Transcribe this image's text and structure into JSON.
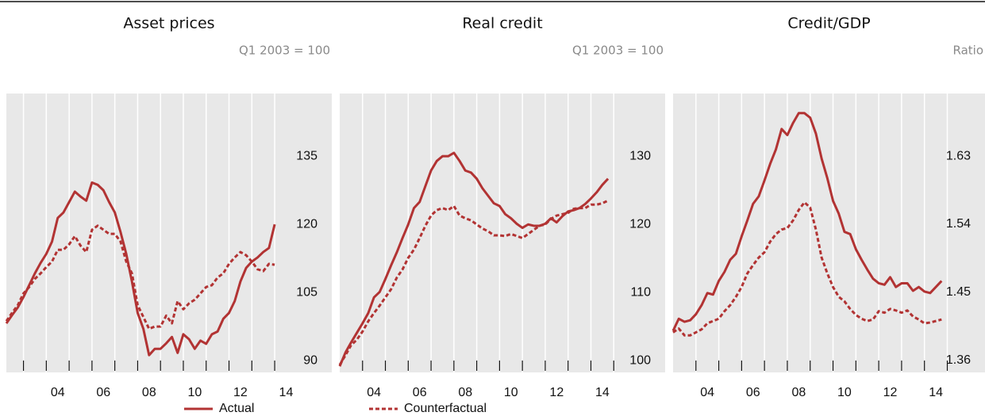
{
  "chart_data": [
    {
      "type": "line",
      "title": "Asset prices",
      "subtitle": "Q1 2003 = 100",
      "x": [
        2002.25,
        2002.5,
        2002.75,
        2003,
        2003.25,
        2003.5,
        2003.75,
        2004,
        2004.25,
        2004.5,
        2004.75,
        2005,
        2005.25,
        2005.5,
        2005.75,
        2006,
        2006.25,
        2006.5,
        2006.75,
        2007,
        2007.25,
        2007.5,
        2007.75,
        2008,
        2008.25,
        2008.5,
        2008.75,
        2009,
        2009.25,
        2009.5,
        2009.75,
        2010,
        2010.25,
        2010.5,
        2010.75,
        2011,
        2011.25,
        2011.5,
        2011.75,
        2012,
        2012.25,
        2012.5,
        2012.75,
        2013,
        2013.25,
        2013.5,
        2013.75,
        2014
      ],
      "xlim": [
        2002.25,
        2016.5
      ],
      "xticks": [
        {
          "value": 2004.5,
          "label": "04"
        },
        {
          "value": 2006.5,
          "label": "06"
        },
        {
          "value": 2008.5,
          "label": "08"
        },
        {
          "value": 2010.5,
          "label": "10"
        },
        {
          "value": 2012.5,
          "label": "12"
        },
        {
          "value": 2014.5,
          "label": "14"
        }
      ],
      "x_tick_marks": [
        2003,
        2004,
        2005,
        2006,
        2007,
        2008,
        2009,
        2010,
        2011,
        2012,
        2013,
        2014
      ],
      "ylim": [
        87.4,
        148.8
      ],
      "yticks": [
        90,
        105,
        120,
        135
      ],
      "series": [
        {
          "name": "Actual",
          "color": "#b23333",
          "dash": false,
          "values": [
            98.2,
            100,
            101.7,
            104,
            106.6,
            109.2,
            111.5,
            113.5,
            116.2,
            121.4,
            122.6,
            124.9,
            127.2,
            126.1,
            125.2,
            129.2,
            128.7,
            127.5,
            124.9,
            122.6,
            118.3,
            113.5,
            107.4,
            100.5,
            97,
            91.2,
            92.6,
            92.6,
            93.8,
            95.2,
            91.7,
            95.8,
            94.7,
            92.6,
            94.4,
            93.7,
            95.8,
            96.4,
            99.2,
            100.5,
            103.1,
            107.4,
            110.4,
            111.8,
            112.7,
            113.9,
            114.8,
            120
          ]
        },
        {
          "name": "Counterfactual",
          "color": "#b23333",
          "dash": true,
          "values": [
            98.7,
            100.5,
            102.2,
            104.8,
            106.2,
            108,
            109.2,
            110.6,
            111.8,
            114.4,
            114.4,
            115.6,
            117.4,
            115.3,
            113.9,
            118.8,
            119.7,
            118.8,
            117.9,
            117.9,
            116.2,
            111.8,
            109.2,
            102.2,
            99.6,
            97,
            97.5,
            97.5,
            99.9,
            98.2,
            103.1,
            101.3,
            102.6,
            103.4,
            104.8,
            106.2,
            106.6,
            108.3,
            109.2,
            111.3,
            112.7,
            113.9,
            113.2,
            111.8,
            110.1,
            109.7,
            111.3,
            111.1
          ]
        }
      ]
    },
    {
      "type": "line",
      "title": "Real credit",
      "subtitle": "Q1 2003 = 100",
      "x": [
        2003,
        2003.25,
        2003.5,
        2003.75,
        2004,
        2004.25,
        2004.5,
        2004.75,
        2005,
        2005.25,
        2005.5,
        2005.75,
        2006,
        2006.25,
        2006.5,
        2006.75,
        2007,
        2007.25,
        2007.5,
        2007.75,
        2008,
        2008.25,
        2008.5,
        2008.75,
        2009,
        2009.25,
        2009.5,
        2009.75,
        2010,
        2010.25,
        2010.5,
        2010.75,
        2011,
        2011.25,
        2011.5,
        2011.75,
        2012,
        2012.25,
        2012.5,
        2012.75,
        2013,
        2013.25,
        2013.5,
        2013.75,
        2014,
        2014.25,
        2014.5,
        2014.75
      ],
      "xlim": [
        2003,
        2017.25
      ],
      "xticks": [
        {
          "value": 2004.5,
          "label": "04"
        },
        {
          "value": 2006.5,
          "label": "06"
        },
        {
          "value": 2008.5,
          "label": "08"
        },
        {
          "value": 2010.5,
          "label": "10"
        },
        {
          "value": 2012.5,
          "label": "12"
        },
        {
          "value": 2014.5,
          "label": "14"
        }
      ],
      "x_tick_marks": [
        2004,
        2005,
        2006,
        2007,
        2008,
        2009,
        2010,
        2011,
        2012,
        2013,
        2014,
        2015
      ],
      "ylim": [
        98.3,
        139.2
      ],
      "yticks": [
        100,
        110,
        120,
        130
      ],
      "series": [
        {
          "color": "#b23333",
          "dash": false,
          "values": [
            99.2,
            101.2,
            102.7,
            104.1,
            105.5,
            107,
            109.3,
            110.1,
            112,
            114,
            115.9,
            118,
            120,
            122.4,
            123.3,
            125.6,
            127.9,
            129.3,
            130,
            130,
            130.5,
            129.3,
            127.9,
            127.6,
            126.7,
            125.3,
            124.2,
            123.1,
            122.7,
            121.5,
            120.9,
            120.1,
            119.5,
            120,
            119.8,
            119.8,
            120.1,
            120.9,
            120.3,
            121.2,
            121.9,
            122.1,
            122.4,
            123,
            123.8,
            124.7,
            125.8,
            126.7
          ]
        },
        {
          "color": "#b23333",
          "dash": true,
          "values": [
            99.4,
            100.8,
            102.3,
            103.1,
            104.3,
            105.8,
            107,
            108.1,
            109.3,
            110.5,
            112.2,
            113.4,
            115.1,
            116.3,
            118,
            119.8,
            121.3,
            122.1,
            122.4,
            122.1,
            122.7,
            121.3,
            120.9,
            120.6,
            120,
            119.4,
            119,
            118.4,
            118.4,
            118.3,
            118.6,
            118.3,
            118,
            118.6,
            119.2,
            119.8,
            120,
            120.8,
            121.3,
            121.5,
            121.7,
            122.3,
            122.4,
            122.4,
            122.9,
            122.9,
            123.1,
            123.5
          ]
        }
      ]
    },
    {
      "type": "line",
      "title": "Credit/GDP",
      "subtitle": "Ratio",
      "x": [
        2003,
        2003.25,
        2003.5,
        2003.75,
        2004,
        2004.25,
        2004.5,
        2004.75,
        2005,
        2005.25,
        2005.5,
        2005.75,
        2006,
        2006.25,
        2006.5,
        2006.75,
        2007,
        2007.25,
        2007.5,
        2007.75,
        2008,
        2008.25,
        2008.5,
        2008.75,
        2009,
        2009.25,
        2009.5,
        2009.75,
        2010,
        2010.25,
        2010.5,
        2010.75,
        2011,
        2011.25,
        2011.5,
        2011.75,
        2012,
        2012.25,
        2012.5,
        2012.75,
        2013,
        2013.25,
        2013.5,
        2013.75,
        2014,
        2014.25,
        2014.5,
        2014.75
      ],
      "xlim": [
        2003,
        2016.65
      ],
      "xticks": [
        {
          "value": 2004.5,
          "label": "04"
        },
        {
          "value": 2006.5,
          "label": "06"
        },
        {
          "value": 2008.5,
          "label": "08"
        },
        {
          "value": 2010.5,
          "label": "10"
        },
        {
          "value": 2012.5,
          "label": "12"
        },
        {
          "value": 2014.5,
          "label": "14"
        }
      ],
      "x_tick_marks": [
        2004,
        2005,
        2006,
        2007,
        2008,
        2009,
        2010,
        2011,
        2012,
        2013,
        2014,
        2015
      ],
      "ylim": [
        1.344,
        1.713
      ],
      "yticks": [
        1.36,
        1.45,
        1.54,
        1.63
      ],
      "series": [
        {
          "color": "#b23333",
          "dash": false,
          "values": [
            1.399,
            1.415,
            1.411,
            1.413,
            1.421,
            1.433,
            1.449,
            1.447,
            1.465,
            1.477,
            1.493,
            1.501,
            1.524,
            1.545,
            1.567,
            1.577,
            1.598,
            1.62,
            1.639,
            1.666,
            1.658,
            1.674,
            1.687,
            1.687,
            1.681,
            1.66,
            1.627,
            1.601,
            1.571,
            1.554,
            1.53,
            1.527,
            1.507,
            1.493,
            1.48,
            1.468,
            1.462,
            1.46,
            1.47,
            1.457,
            1.462,
            1.462,
            1.452,
            1.457,
            1.451,
            1.449,
            1.457,
            1.465
          ]
        },
        {
          "color": "#b23333",
          "dash": true,
          "values": [
            1.397,
            1.402,
            1.393,
            1.393,
            1.397,
            1.401,
            1.409,
            1.412,
            1.415,
            1.425,
            1.433,
            1.444,
            1.457,
            1.475,
            1.486,
            1.496,
            1.503,
            1.517,
            1.527,
            1.533,
            1.535,
            1.545,
            1.559,
            1.569,
            1.562,
            1.533,
            1.496,
            1.475,
            1.457,
            1.444,
            1.438,
            1.428,
            1.42,
            1.415,
            1.412,
            1.414,
            1.425,
            1.423,
            1.428,
            1.426,
            1.423,
            1.426,
            1.418,
            1.414,
            1.409,
            1.41,
            1.412,
            1.414
          ]
        }
      ]
    }
  ]
}
